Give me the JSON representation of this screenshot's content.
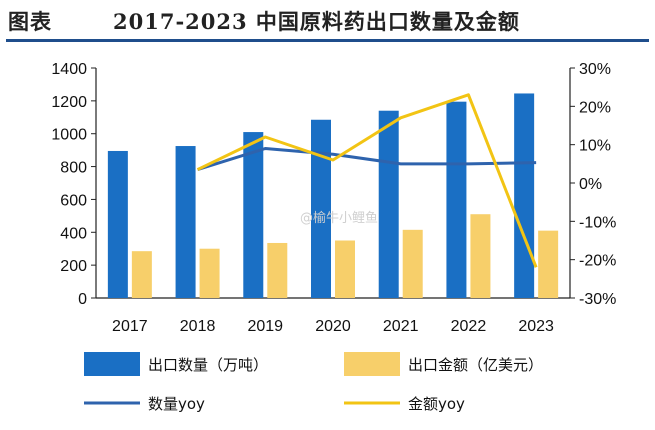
{
  "header": {
    "prefix": "图表",
    "title": "2017-2023 中国原料药出口数量及金额"
  },
  "watermark": "@榆牛小鲤鱼",
  "colors": {
    "quantity_bar": "#1a6fc4",
    "amount_bar": "#f7cf6a",
    "quantity_yoy_line": "#2e63ad",
    "amount_yoy_line": "#f2c414",
    "title_rule": "#1f4e8c"
  },
  "chart_data": {
    "type": "bar",
    "title": "2017-2023 中国原料药出口数量及金额",
    "categories": [
      "2017",
      "2018",
      "2019",
      "2020",
      "2021",
      "2022",
      "2023"
    ],
    "y_left": {
      "ylim": [
        0,
        1400
      ],
      "ticks": [
        "0",
        "200",
        "400",
        "600",
        "800",
        "1000",
        "1200",
        "1400"
      ]
    },
    "y_right": {
      "ylim": [
        -30,
        30
      ],
      "ticks": [
        "-30%",
        "-20%",
        "-10%",
        "0%",
        "10%",
        "20%",
        "30%"
      ]
    },
    "series": [
      {
        "name": "出口数量（万吨）",
        "kind": "bar",
        "axis": "left",
        "values": [
          895,
          925,
          1010,
          1085,
          1140,
          1195,
          1245
        ]
      },
      {
        "name": "出口金额（亿美元）",
        "kind": "bar",
        "axis": "left",
        "values": [
          285,
          300,
          335,
          350,
          415,
          510,
          410
        ]
      },
      {
        "name": "数量yoy",
        "kind": "line",
        "axis": "right",
        "values": [
          null,
          3.5,
          9.0,
          7.5,
          5.0,
          5.0,
          5.3
        ]
      },
      {
        "name": "金额yoy",
        "kind": "line",
        "axis": "right",
        "values": [
          null,
          3.5,
          12.0,
          6.0,
          17.0,
          23.0,
          -22.0
        ]
      }
    ],
    "legend": "bottom",
    "grid": false
  }
}
